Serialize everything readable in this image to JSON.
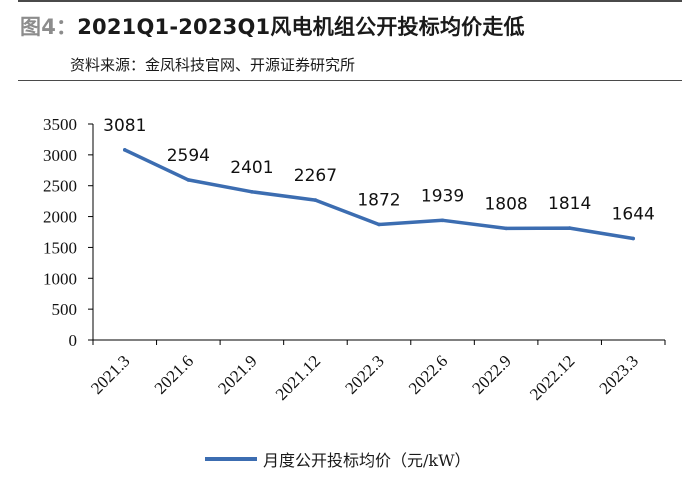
{
  "header": {
    "figure_label": "图4：",
    "title": "2021Q1-2023Q1风电机组公开投标均价走低",
    "source": "资料来源：金凤科技官网、开源证券研究所"
  },
  "colors": {
    "series": "#3c6db1",
    "axis": "#000000",
    "text": "#111111"
  },
  "chart_data": {
    "type": "line",
    "title": "2021Q1-2023Q1风电机组公开投标均价走低",
    "categories": [
      "2021.3",
      "2021.6",
      "2021.9",
      "2021.12",
      "2022.3",
      "2022.6",
      "2022.9",
      "2022.12",
      "2023.3"
    ],
    "series": [
      {
        "name": "月度公开投标均价（元/kW）",
        "values": [
          3081,
          2594,
          2401,
          2267,
          1872,
          1939,
          1808,
          1814,
          1644
        ]
      }
    ],
    "data_labels": [
      "3081",
      "2594",
      "2401",
      "2267",
      "1872",
      "1939",
      "1808",
      "1814",
      "1644"
    ],
    "ylim": [
      0,
      3500
    ],
    "yticks": [
      0,
      500,
      1000,
      1500,
      2000,
      2500,
      3000,
      3500
    ],
    "ytick_labels": [
      "0",
      "500",
      "1000",
      "1500",
      "2000",
      "2500",
      "3000",
      "3500"
    ],
    "xlabel": "",
    "ylabel": "",
    "grid": false,
    "legend_position": "bottom-center"
  },
  "legend": {
    "label": "月度公开投标均价（元/kW）"
  }
}
